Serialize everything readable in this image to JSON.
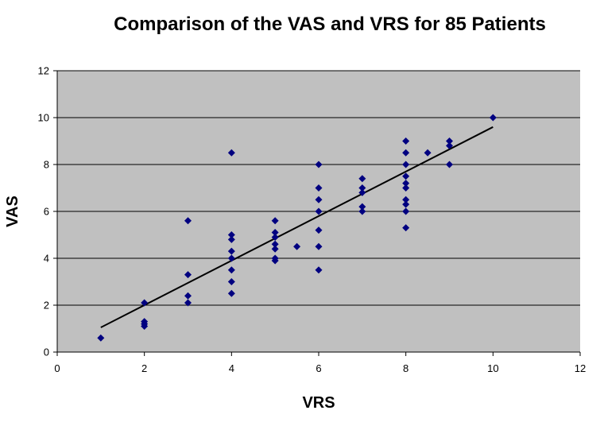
{
  "chart_data": {
    "type": "scatter",
    "title": "Comparison of the VAS and VRS for 85 Patients",
    "xlabel": "VRS",
    "ylabel": "VAS",
    "xlim": [
      0,
      12
    ],
    "ylim": [
      0,
      12
    ],
    "x_ticks": [
      "0",
      "2",
      "4",
      "6",
      "8",
      "10",
      "12"
    ],
    "y_ticks": [
      "0",
      "2",
      "4",
      "6",
      "8",
      "10",
      "12"
    ],
    "grid": "horizontal",
    "legend": "none",
    "colors": {
      "plot_background": "#c0c0c0",
      "gridline": "#000000",
      "marker": "#000080",
      "trendline": "#000000"
    },
    "series": [
      {
        "points": [
          [
            1,
            0.6
          ],
          [
            2,
            2.1
          ],
          [
            2,
            1.3
          ],
          [
            2,
            1.2
          ],
          [
            2,
            1.1
          ],
          [
            3,
            5.6
          ],
          [
            3,
            3.3
          ],
          [
            3,
            2.4
          ],
          [
            3,
            2.1
          ],
          [
            4,
            8.5
          ],
          [
            4,
            5.0
          ],
          [
            4,
            4.8
          ],
          [
            4,
            4.3
          ],
          [
            4,
            4.0
          ],
          [
            4,
            3.5
          ],
          [
            4,
            3.0
          ],
          [
            4,
            2.5
          ],
          [
            5,
            5.6
          ],
          [
            5,
            5.1
          ],
          [
            5,
            4.9
          ],
          [
            5,
            4.6
          ],
          [
            5,
            4.4
          ],
          [
            5,
            4.0
          ],
          [
            5,
            3.9
          ],
          [
            5.5,
            4.5
          ],
          [
            6,
            8.0
          ],
          [
            6,
            7.0
          ],
          [
            6,
            6.5
          ],
          [
            6,
            6.0
          ],
          [
            6,
            5.2
          ],
          [
            6,
            4.5
          ],
          [
            6,
            3.5
          ],
          [
            7,
            7.4
          ],
          [
            7,
            7.0
          ],
          [
            7,
            6.8
          ],
          [
            7,
            6.2
          ],
          [
            7,
            6.0
          ],
          [
            8,
            9.0
          ],
          [
            8,
            8.5
          ],
          [
            8,
            8.0
          ],
          [
            8,
            7.5
          ],
          [
            8,
            7.2
          ],
          [
            8,
            7.0
          ],
          [
            8,
            6.5
          ],
          [
            8,
            6.3
          ],
          [
            8,
            6.0
          ],
          [
            8,
            5.3
          ],
          [
            8.5,
            8.5
          ],
          [
            9,
            9.0
          ],
          [
            9,
            8.8
          ],
          [
            9,
            8.0
          ],
          [
            10,
            10.0
          ]
        ]
      }
    ],
    "trendline": {
      "x": [
        1,
        10
      ],
      "y": [
        1.05,
        9.6
      ]
    }
  }
}
